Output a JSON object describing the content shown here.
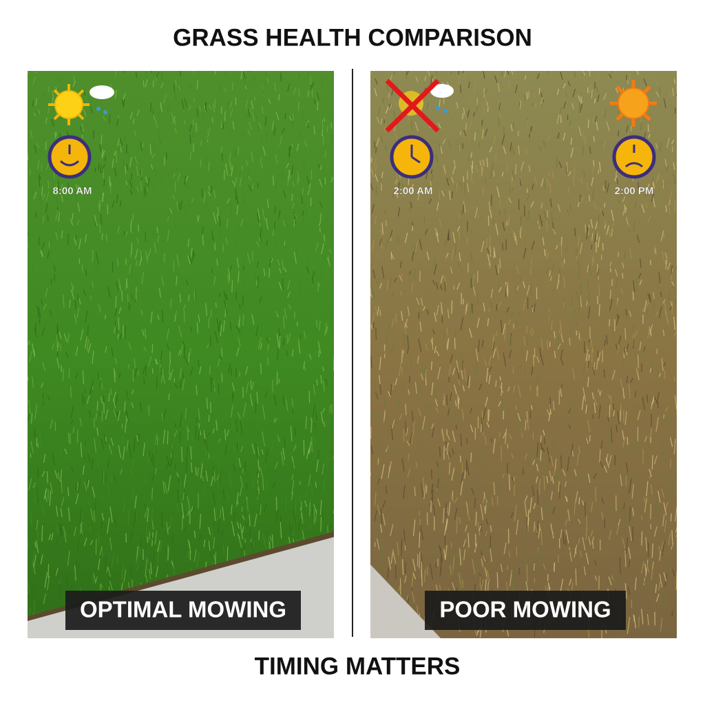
{
  "title": "GRASS HEALTH COMPARISON",
  "panels": [
    {
      "label": "OPTIMAL MOWING",
      "times": [
        "8:00 AM"
      ]
    },
    {
      "label": "POOR MOWING",
      "times": [
        "2:00 AM",
        "2:00 PM"
      ]
    }
  ],
  "footer": "TIMING MATTERS"
}
